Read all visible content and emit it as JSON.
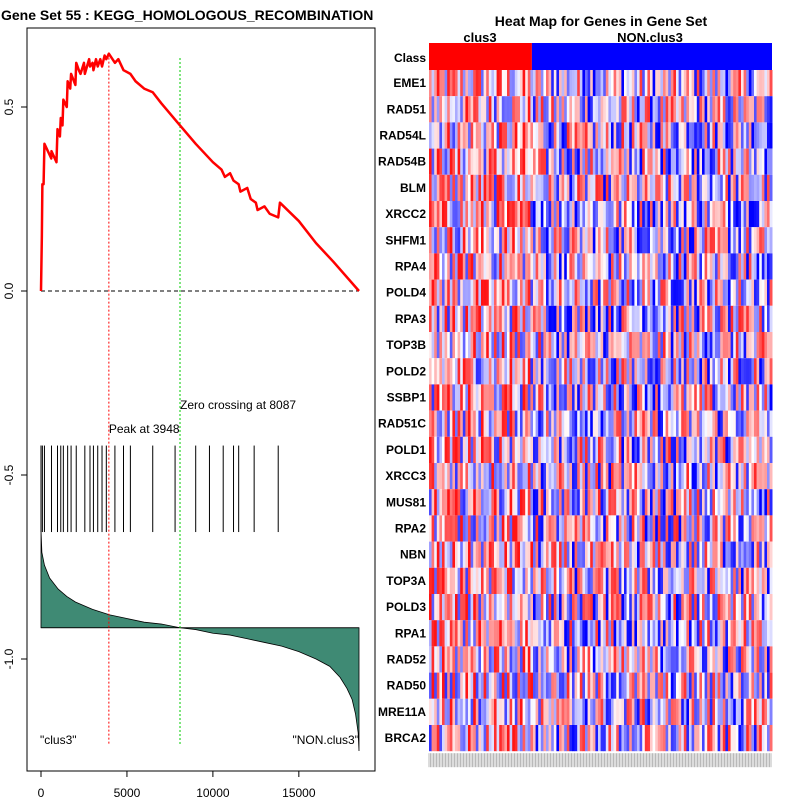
{
  "title": "Gene Set  55 : KEGG_HOMOLOGOUS_RECOMBINATION",
  "heatmap_title": "Heat Map for Genes in Gene Set",
  "class_label": "Class",
  "class_groups": [
    "clus3",
    "NON.clus3"
  ],
  "colors": {
    "es_line": "#ff0000",
    "peak_line": "#ff0000",
    "zero_line": "#00cc00",
    "metric_fill": "#3f8a74",
    "clus3": "#ff0000",
    "non_clus3": "#0000ff"
  },
  "chart_data": [
    {
      "type": "line",
      "title": "Gene Set  55 : KEGG_HOMOLOGOUS_RECOMBINATION",
      "xlabel": "",
      "ylabel": "",
      "xlim": [
        -1000,
        19000
      ],
      "ylim": [
        -1.3,
        0.72
      ],
      "x_ticks": [
        0,
        5000,
        10000,
        15000
      ],
      "x_tick_labels": [
        "0",
        "5000",
        "10000",
        "15000"
      ],
      "y_ticks": [
        0.5,
        0.0,
        -0.5,
        -1.0
      ],
      "y_tick_labels": [
        "0.5",
        "0.0",
        "-0.5",
        "-1.0"
      ],
      "annotations": {
        "peak_label": "Peak at 3948",
        "peak_x": 3948,
        "zero_label": "Zero crossing at 8087",
        "zero_x": 8087,
        "left_label": "\"clus3\"",
        "right_label": "\"NON.clus3\""
      },
      "running_es": {
        "x": [
          0,
          50,
          80,
          150,
          200,
          600,
          610,
          900,
          960,
          1100,
          1150,
          1250,
          1300,
          1500,
          1550,
          1700,
          1750,
          2000,
          2050,
          2200,
          2300,
          2500,
          2550,
          2800,
          2850,
          3000,
          3050,
          3200,
          3300,
          3450,
          3550,
          3700,
          3800,
          3948,
          4300,
          4500,
          4800,
          5200,
          5500,
          6000,
          6500,
          7000,
          8087,
          9000,
          10000,
          10500,
          10700,
          11000,
          11200,
          11500,
          11600,
          12000,
          12200,
          12500,
          12600,
          13000,
          13300,
          13800,
          13900,
          15000,
          16000,
          17000,
          18500
        ],
        "y": [
          0.0,
          0.15,
          0.29,
          0.29,
          0.4,
          0.36,
          0.38,
          0.35,
          0.44,
          0.42,
          0.47,
          0.45,
          0.52,
          0.5,
          0.57,
          0.55,
          0.59,
          0.56,
          0.62,
          0.6,
          0.59,
          0.62,
          0.59,
          0.63,
          0.61,
          0.62,
          0.6,
          0.63,
          0.61,
          0.63,
          0.61,
          0.64,
          0.63,
          0.645,
          0.62,
          0.63,
          0.6,
          0.59,
          0.57,
          0.55,
          0.54,
          0.51,
          0.45,
          0.4,
          0.35,
          0.33,
          0.31,
          0.32,
          0.3,
          0.29,
          0.27,
          0.28,
          0.25,
          0.24,
          0.22,
          0.23,
          0.21,
          0.2,
          0.24,
          0.19,
          0.13,
          0.08,
          0.0
        ]
      },
      "hit_positions": [
        0,
        80,
        200,
        610,
        960,
        1150,
        1300,
        1550,
        1750,
        2050,
        2550,
        2850,
        3050,
        3300,
        3550,
        3800,
        4300,
        4800,
        5200,
        6500,
        7800,
        9000,
        9800,
        10600,
        11200,
        11500,
        12400,
        13800
      ],
      "ranked_metric": {
        "x": [
          0,
          50,
          200,
          500,
          1000,
          1500,
          2000,
          3000,
          4000,
          5000,
          6000,
          7000,
          8087,
          9000,
          10000,
          11000,
          12000,
          13000,
          14000,
          15000,
          16000,
          16800,
          17400,
          17800,
          18100,
          18300,
          18450,
          18500
        ],
        "y": [
          -0.65,
          -0.71,
          -0.745,
          -0.78,
          -0.81,
          -0.83,
          -0.845,
          -0.865,
          -0.88,
          -0.89,
          -0.9,
          -0.905,
          -0.915,
          -0.92,
          -0.93,
          -0.935,
          -0.945,
          -0.955,
          -0.965,
          -0.98,
          -1.0,
          -1.02,
          -1.05,
          -1.08,
          -1.11,
          -1.15,
          -1.2,
          -1.25
        ]
      },
      "metric_baseline": -0.915
    },
    {
      "type": "heatmap",
      "title": "Heat Map for Genes in Gene Set",
      "columns": [
        "clus3",
        "NON.clus3"
      ],
      "rows": [
        "EME1",
        "RAD51",
        "RAD54L",
        "RAD54B",
        "BLM",
        "XRCC2",
        "SHFM1",
        "RPA4",
        "POLD4",
        "RPA3",
        "TOP3B",
        "POLD2",
        "SSBP1",
        "RAD51C",
        "POLD1",
        "XRCC3",
        "MUS81",
        "RPA2",
        "NBN",
        "TOP3A",
        "POLD3",
        "RPA1",
        "RAD52",
        "RAD50",
        "MRE11A",
        "BRCA2"
      ],
      "clus3_fraction": 0.3
    }
  ]
}
